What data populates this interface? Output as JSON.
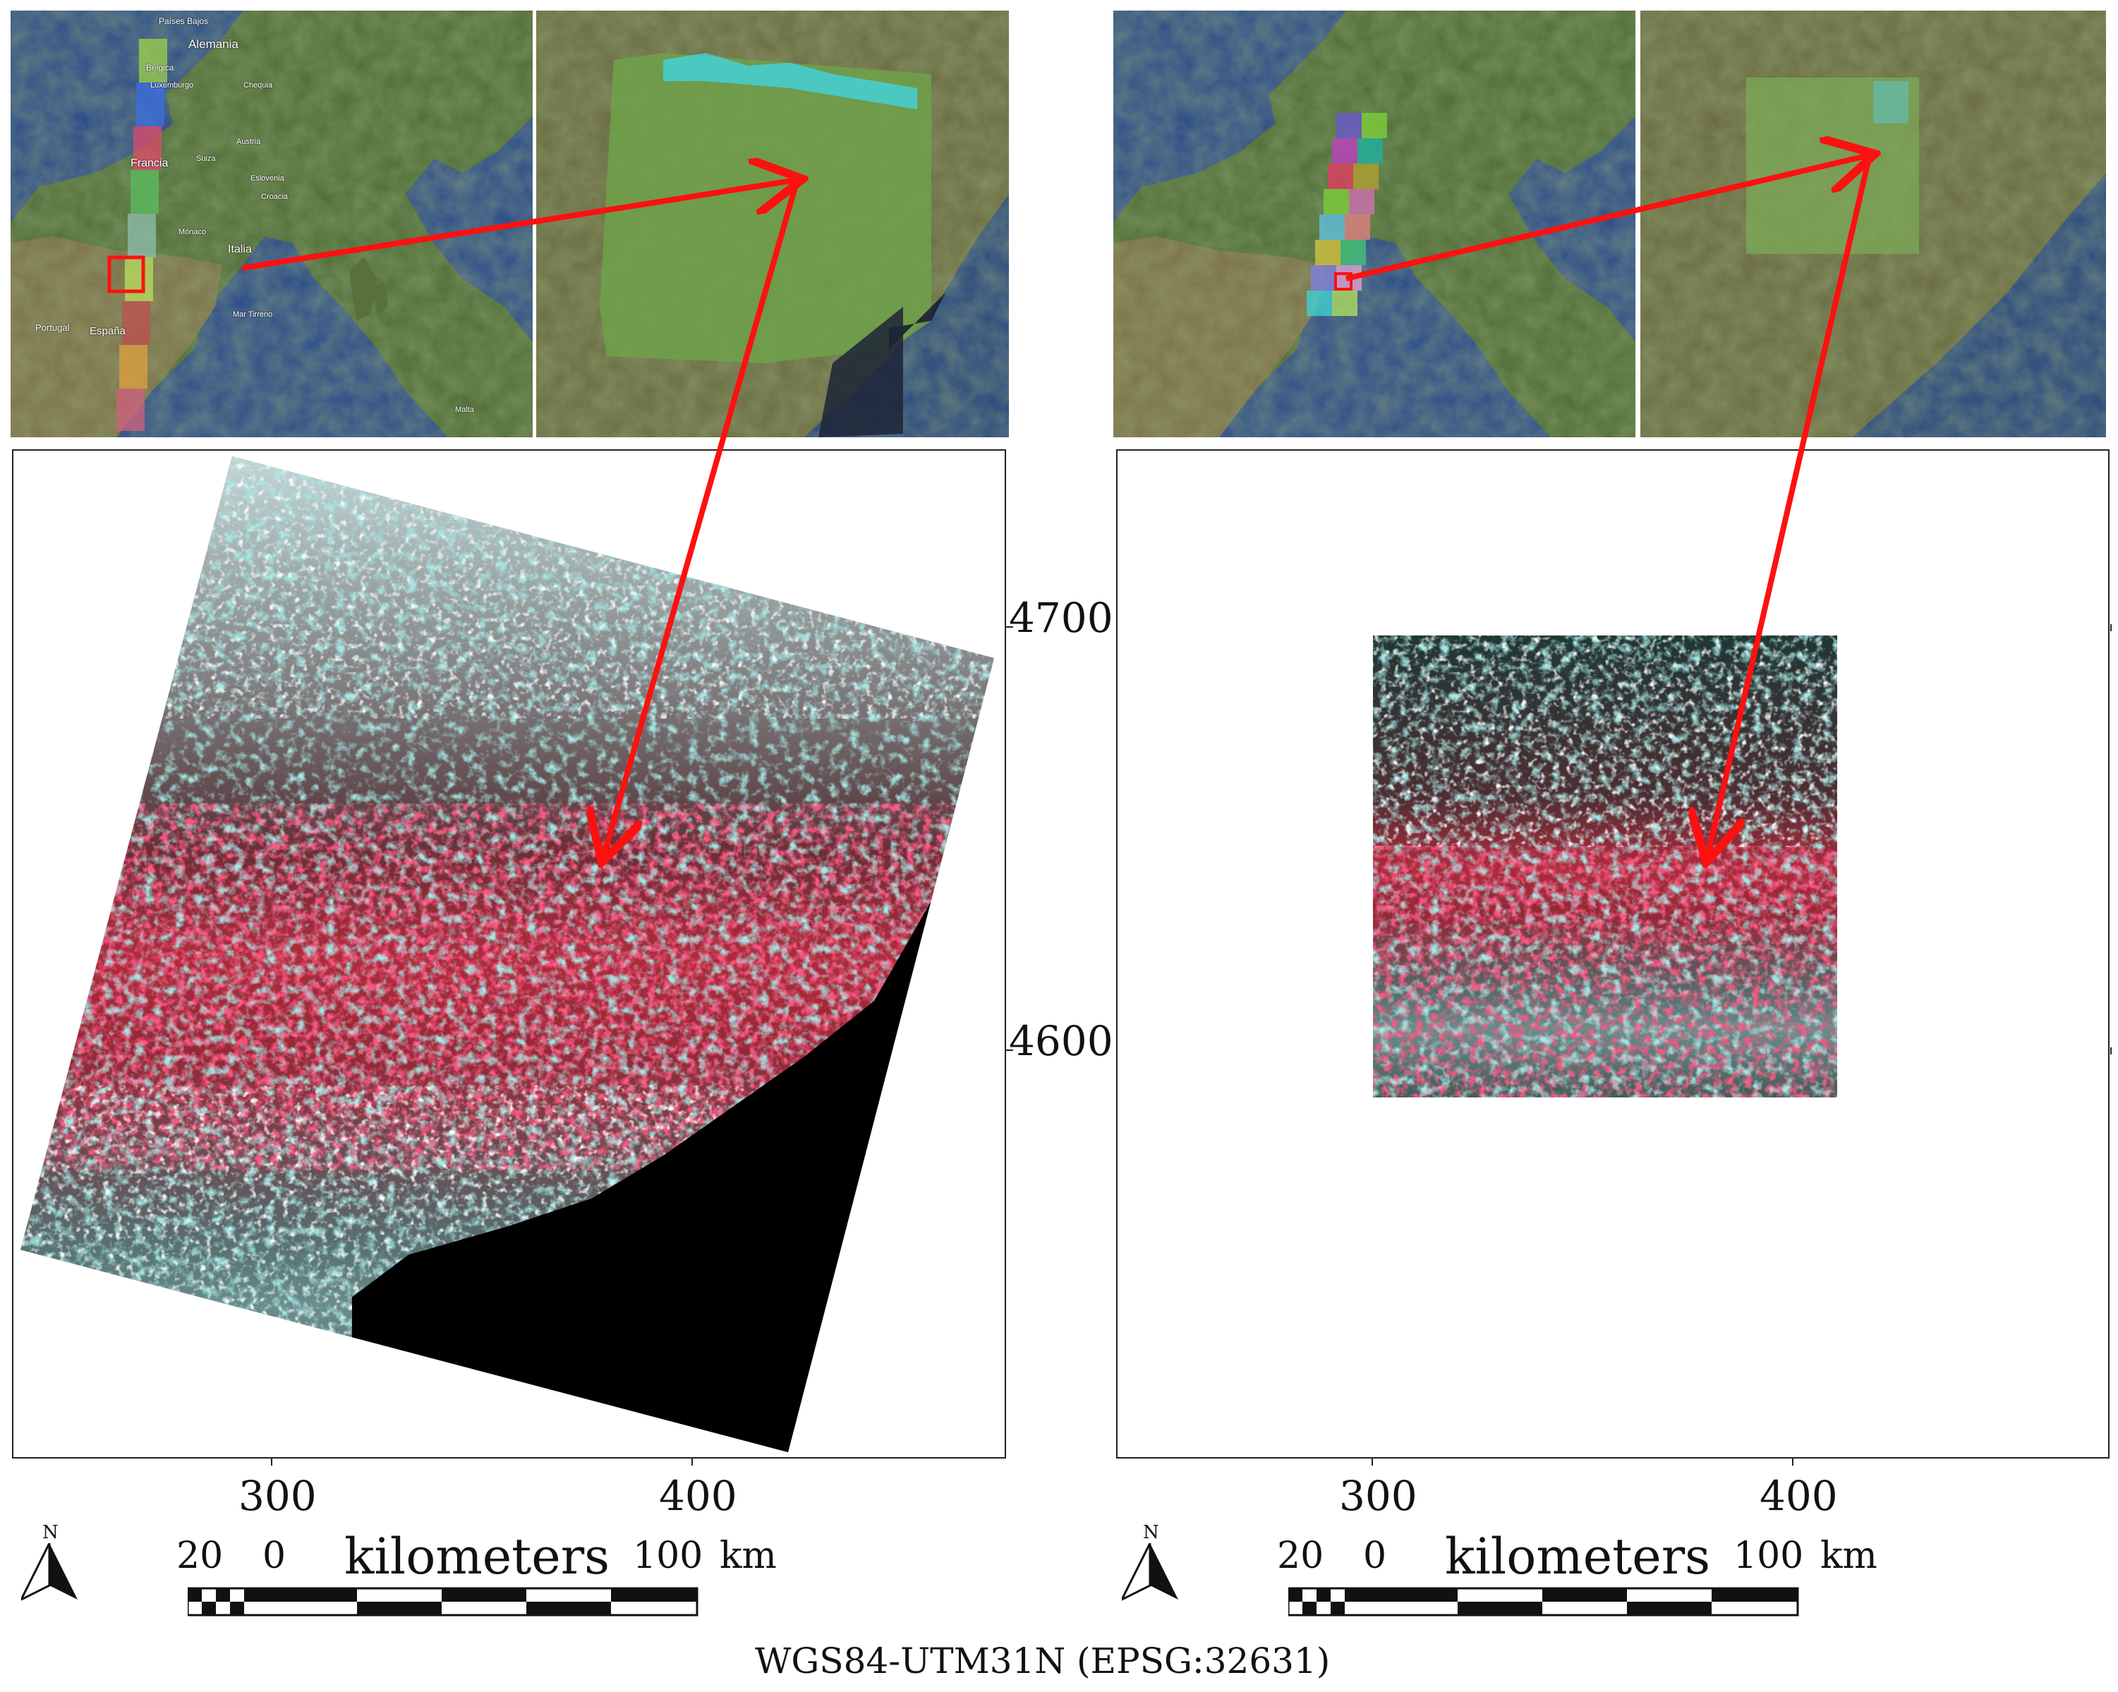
{
  "crs_label": "WGS84-UTM31N (EPSG:32631)",
  "left_map": {
    "y_ticks": [
      "4700",
      "4600"
    ],
    "x_ticks": [
      "300",
      "400"
    ],
    "scale": {
      "n20": "20",
      "n0": "0",
      "unit": "kilometers",
      "n100": "100",
      "km": "km"
    },
    "north": "N",
    "place_names": {
      "alemania": "Alemania",
      "francia": "Francia",
      "espana": "España",
      "portugal": "Portugal",
      "italia": "Italia",
      "paises_bajos": "Países Bajos",
      "belgica": "Bélgica",
      "luxemburgo": "Luxemburgo",
      "suiza": "Suiza",
      "austria": "Austria",
      "chequia": "Chequia",
      "eslovenia": "Eslovenia",
      "croacia": "Croacia",
      "monaco": "Mónaco",
      "mar_tirreno": "Mar Tirreno",
      "malta": "Malta"
    }
  },
  "right_map": {
    "x_ticks": [
      "300",
      "400"
    ],
    "scale": {
      "n20": "20",
      "n0": "0",
      "unit": "kilometers",
      "n100": "100",
      "km": "km"
    },
    "north": "N"
  },
  "colors": {
    "arrow": "#ff1010",
    "ocean": "#23407a",
    "land": "#4a6a30",
    "false_color_red": "#e8203a",
    "false_color_cyan": "#40c0c0",
    "false_color_dark": "#1a1f1c"
  }
}
